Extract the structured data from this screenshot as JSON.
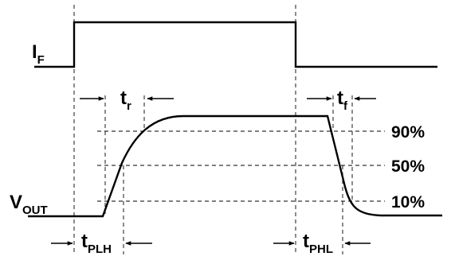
{
  "signals": {
    "input": {
      "main": "I",
      "sub": "F"
    },
    "output": {
      "main": "V",
      "sub": "OUT"
    }
  },
  "timings": {
    "rise": {
      "main": "t",
      "sub": "r"
    },
    "fall": {
      "main": "t",
      "sub": "f"
    },
    "plh": {
      "main": "t",
      "sub": "PLH"
    },
    "phl": {
      "main": "t",
      "sub": "PHL"
    }
  },
  "levels": [
    {
      "label": "90%"
    },
    {
      "label": "50%"
    },
    {
      "label": "10%"
    }
  ]
}
